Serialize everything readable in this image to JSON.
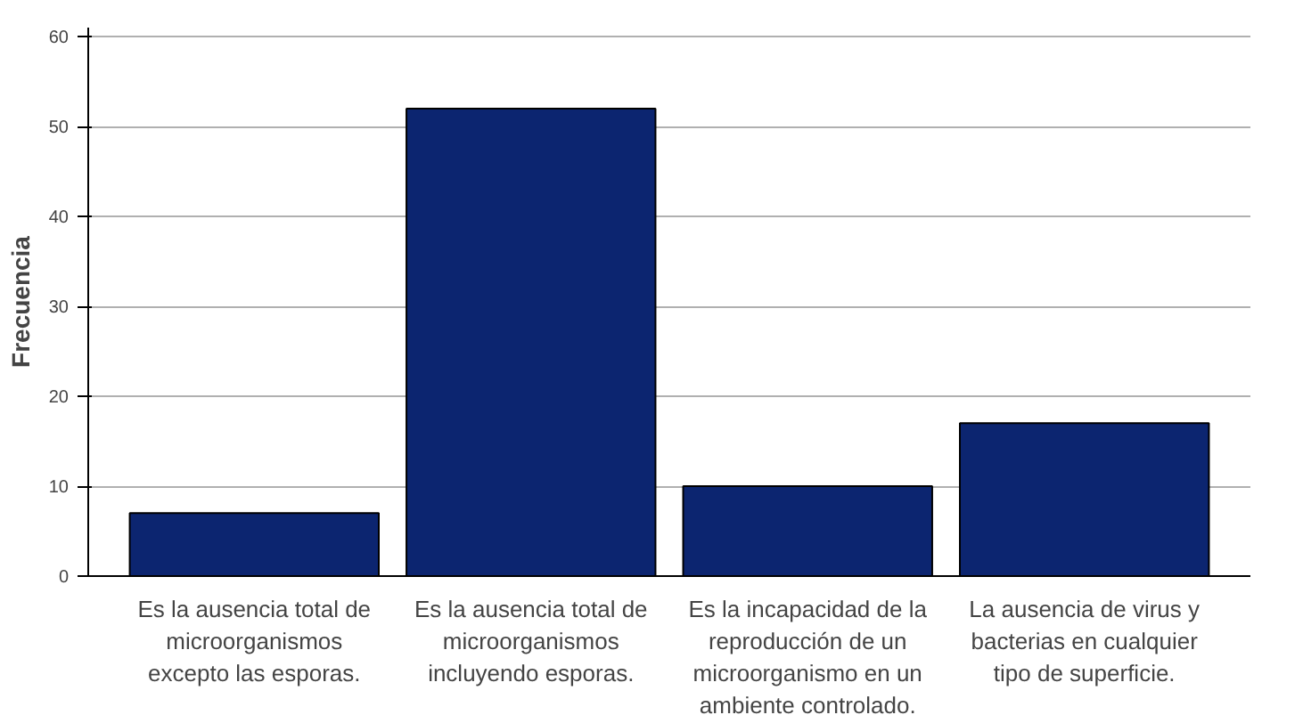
{
  "chart_data": {
    "type": "bar",
    "ylabel": "Frecuencia",
    "categories": [
      "Es la ausencia total de\nmicroorganismos\nexcepto las esporas.",
      "Es la ausencia total de\nmicroorganismos\nincluyendo esporas.",
      "Es la incapacidad de la\nreproducción de un\nmicroorganismo en un\nambiente controlado.",
      "La ausencia de virus y\nbacterias en cualquier\ntipo de superficie."
    ],
    "values": [
      7,
      52,
      10,
      17
    ],
    "color": "#0c2570",
    "ylim": [
      0,
      61
    ],
    "yticks": [
      0,
      10,
      20,
      30,
      40,
      50,
      60
    ],
    "grid": "y"
  }
}
